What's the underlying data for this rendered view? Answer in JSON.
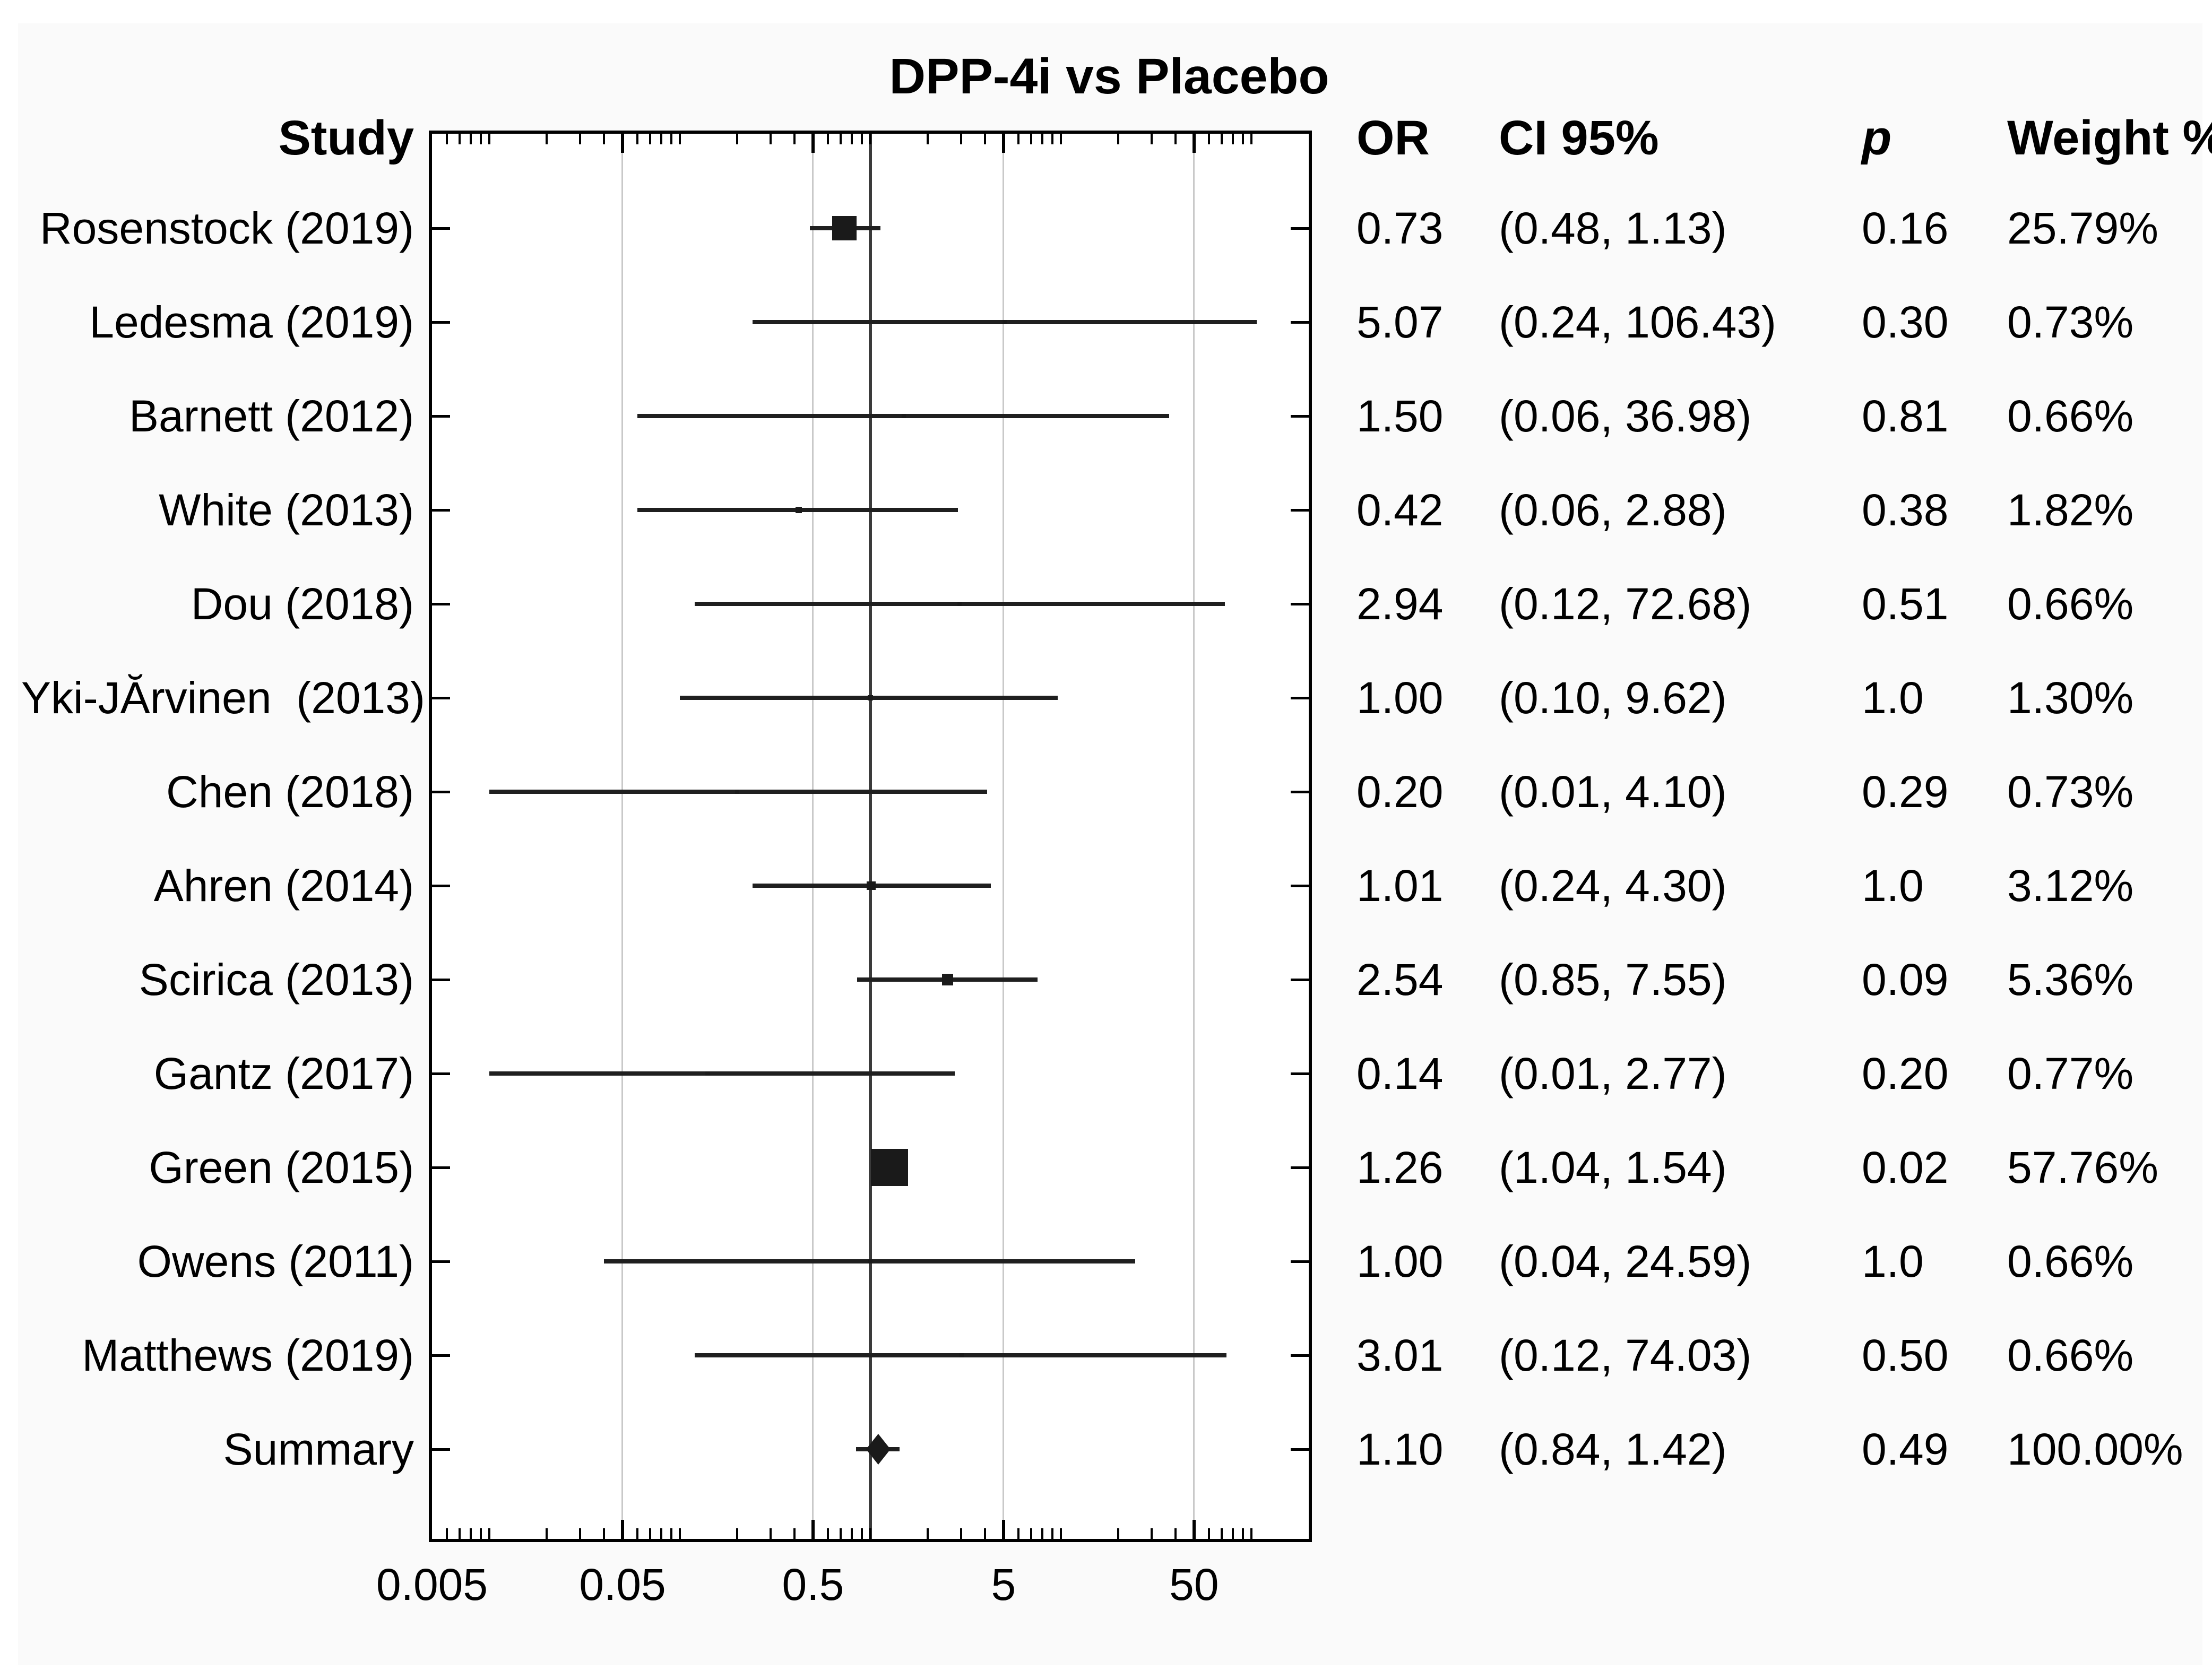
{
  "title": "DPP-4i vs Placebo",
  "columns": {
    "study": "Study",
    "or": "OR",
    "ci": "CI 95%",
    "p": "p",
    "weight": "Weight %"
  },
  "chart_data": {
    "type": "forest",
    "title": "DPP-4i vs Placebo",
    "x_scale": "log",
    "x_range": [
      0.005,
      200
    ],
    "x_tick_values": [
      0.005,
      0.05,
      0.5,
      5,
      50
    ],
    "x_tick_labels": [
      "0.005",
      "0.05",
      "0.5",
      "5",
      "50"
    ],
    "gridline_values": [
      0.05,
      0.5,
      5,
      50
    ],
    "reference_value": 1,
    "grid": true,
    "legend": "none",
    "studies": [
      {
        "label": "Rosenstock (2019)",
        "or": 0.73,
        "ci_low": 0.48,
        "ci_high": 1.13,
        "or_text": "0.73",
        "ci_text": "(0.48, 1.13)",
        "p_text": "0.16",
        "weight_text": "25.79%",
        "weight_pct": 25.79,
        "marker": "square"
      },
      {
        "label": "Ledesma (2019)",
        "or": 5.07,
        "ci_low": 0.24,
        "ci_high": 106.43,
        "or_text": "5.07",
        "ci_text": "(0.24, 106.43)",
        "p_text": "0.30",
        "weight_text": "0.73%",
        "weight_pct": 0.73,
        "marker": "square"
      },
      {
        "label": "Barnett (2012)",
        "or": 1.5,
        "ci_low": 0.06,
        "ci_high": 36.98,
        "or_text": "1.50",
        "ci_text": "(0.06, 36.98)",
        "p_text": "0.81",
        "weight_text": "0.66%",
        "weight_pct": 0.66,
        "marker": "square"
      },
      {
        "label": "White (2013)",
        "or": 0.42,
        "ci_low": 0.06,
        "ci_high": 2.88,
        "or_text": "0.42",
        "ci_text": "(0.06, 2.88)",
        "p_text": "0.38",
        "weight_text": "1.82%",
        "weight_pct": 1.82,
        "marker": "square"
      },
      {
        "label": "Dou (2018)",
        "or": 2.94,
        "ci_low": 0.12,
        "ci_high": 72.68,
        "or_text": "2.94",
        "ci_text": "(0.12, 72.68)",
        "p_text": "0.51",
        "weight_text": "0.66%",
        "weight_pct": 0.66,
        "marker": "square"
      },
      {
        "label": "Yki-JĂrvinen  (2013)",
        "or": 1.0,
        "ci_low": 0.1,
        "ci_high": 9.62,
        "or_text": "1.00",
        "ci_text": "(0.10, 9.62)",
        "p_text": "1.0",
        "weight_text": "1.30%",
        "weight_pct": 1.3,
        "marker": "square"
      },
      {
        "label": "Chen (2018)",
        "or": 0.2,
        "ci_low": 0.01,
        "ci_high": 4.1,
        "or_text": "0.20",
        "ci_text": "(0.01, 4.10)",
        "p_text": "0.29",
        "weight_text": "0.73%",
        "weight_pct": 0.73,
        "marker": "square"
      },
      {
        "label": "Ahren (2014)",
        "or": 1.01,
        "ci_low": 0.24,
        "ci_high": 4.3,
        "or_text": "1.01",
        "ci_text": "(0.24, 4.30)",
        "p_text": "1.0",
        "weight_text": "3.12%",
        "weight_pct": 3.12,
        "marker": "square"
      },
      {
        "label": "Scirica (2013)",
        "or": 2.54,
        "ci_low": 0.85,
        "ci_high": 7.55,
        "or_text": "2.54",
        "ci_text": "(0.85, 7.55)",
        "p_text": "0.09",
        "weight_text": "5.36%",
        "weight_pct": 5.36,
        "marker": "square"
      },
      {
        "label": "Gantz (2017)",
        "or": 0.14,
        "ci_low": 0.01,
        "ci_high": 2.77,
        "or_text": "0.14",
        "ci_text": "(0.01, 2.77)",
        "p_text": "0.20",
        "weight_text": "0.77%",
        "weight_pct": 0.77,
        "marker": "square"
      },
      {
        "label": "Green (2015)",
        "or": 1.26,
        "ci_low": 1.04,
        "ci_high": 1.54,
        "or_text": "1.26",
        "ci_text": "(1.04, 1.54)",
        "p_text": "0.02",
        "weight_text": "57.76%",
        "weight_pct": 57.76,
        "marker": "square"
      },
      {
        "label": "Owens (2011)",
        "or": 1.0,
        "ci_low": 0.04,
        "ci_high": 24.59,
        "or_text": "1.00",
        "ci_text": "(0.04, 24.59)",
        "p_text": "1.0",
        "weight_text": "0.66%",
        "weight_pct": 0.66,
        "marker": "square"
      },
      {
        "label": "Matthews (2019)",
        "or": 3.01,
        "ci_low": 0.12,
        "ci_high": 74.03,
        "or_text": "3.01",
        "ci_text": "(0.12, 74.03)",
        "p_text": "0.50",
        "weight_text": "0.66%",
        "weight_pct": 0.66,
        "marker": "square"
      },
      {
        "label": "Summary",
        "or": 1.1,
        "ci_low": 0.84,
        "ci_high": 1.42,
        "or_text": "1.10",
        "ci_text": "(0.84, 1.42)",
        "p_text": "0.49",
        "weight_text": "100.00%",
        "weight_pct": 100.0,
        "marker": "diamond"
      }
    ],
    "colors": {
      "marker": "#1a1a1a",
      "ci_line": "#1f1f1f",
      "gridline": "#c9c9c9",
      "reference_line": "#3a3a3a",
      "box_border": "#000000",
      "text": "#000000",
      "panel_bg": "#fafafa",
      "plot_bg": "#ffffff"
    }
  }
}
